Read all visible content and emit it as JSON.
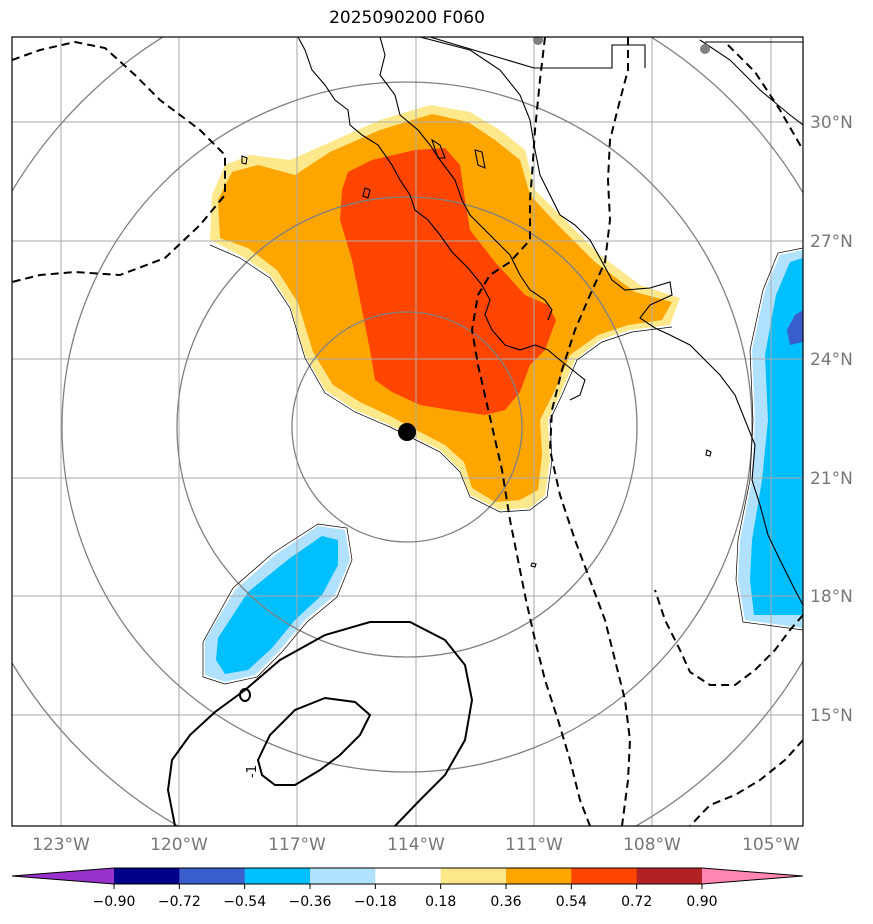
{
  "title": "2025090200 F060",
  "grid": {
    "lon_labels": [
      "123°W",
      "120°W",
      "117°W",
      "114°W",
      "111°W",
      "108°W",
      "105°W"
    ],
    "lat_labels": [
      "30°N",
      "27°N",
      "24°N",
      "21°N",
      "18°N",
      "15°N"
    ]
  },
  "storm_center": {
    "lat": 22.1,
    "lon": -114.3
  },
  "contour_labels": [
    "-1"
  ],
  "colorbar": {
    "ticks": [
      "−0.90",
      "−0.72",
      "−0.54",
      "−0.36",
      "−0.18",
      "0.18",
      "0.36",
      "0.54",
      "0.72",
      "0.90"
    ],
    "colors": [
      "#9932cc",
      "#00008b",
      "#3a5fcd",
      "#00bfff",
      "#b0e2ff",
      "#ffffff",
      "#fde98b",
      "#ffa500",
      "#ff4500",
      "#b22222",
      "#ff85b3"
    ]
  },
  "colors": {
    "grid": "#aaaaaa",
    "range_rings": "#808080",
    "coast": "#000000",
    "positive_1": "#fde98b",
    "positive_2": "#ffa500",
    "positive_3": "#ff4500",
    "negative_1": "#b0e2ff",
    "negative_2": "#00bfff",
    "negative_3": "#3a5fcd"
  }
}
